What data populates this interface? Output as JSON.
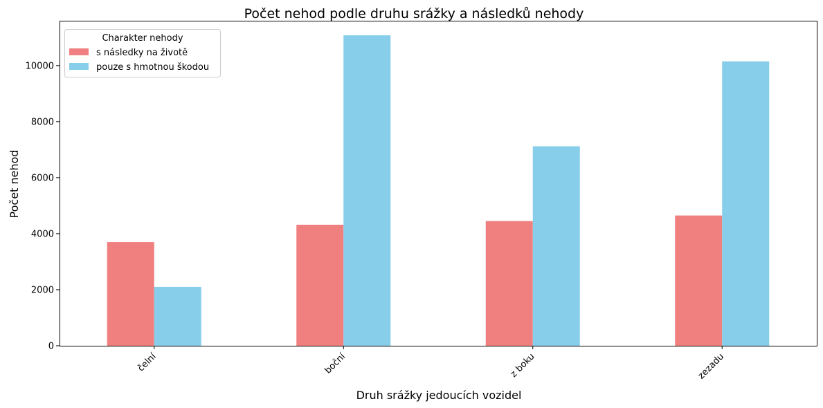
{
  "chart_data": {
    "type": "bar",
    "title": "Počet nehod podle druhu srážky a následků nehody",
    "xlabel": "Druh srážky jedoucích vozidel",
    "ylabel": "Počet nehod",
    "categories": [
      "čelní",
      "boční",
      "z boku",
      "zezadu"
    ],
    "series": [
      {
        "name": "s následky na životě",
        "color": "#f08080",
        "values": [
          3700,
          4320,
          4450,
          4650
        ]
      },
      {
        "name": "pouze s hmotnou škodou",
        "color": "#87ceeb",
        "values": [
          2100,
          11080,
          7120,
          10150
        ]
      }
    ],
    "ylim": [
      0,
      11600
    ],
    "yticks": [
      "0",
      "2000",
      "4000",
      "6000",
      "8000",
      "10000"
    ],
    "legend": {
      "title": "Charakter nehody",
      "position": "top-left"
    },
    "grid": false
  }
}
